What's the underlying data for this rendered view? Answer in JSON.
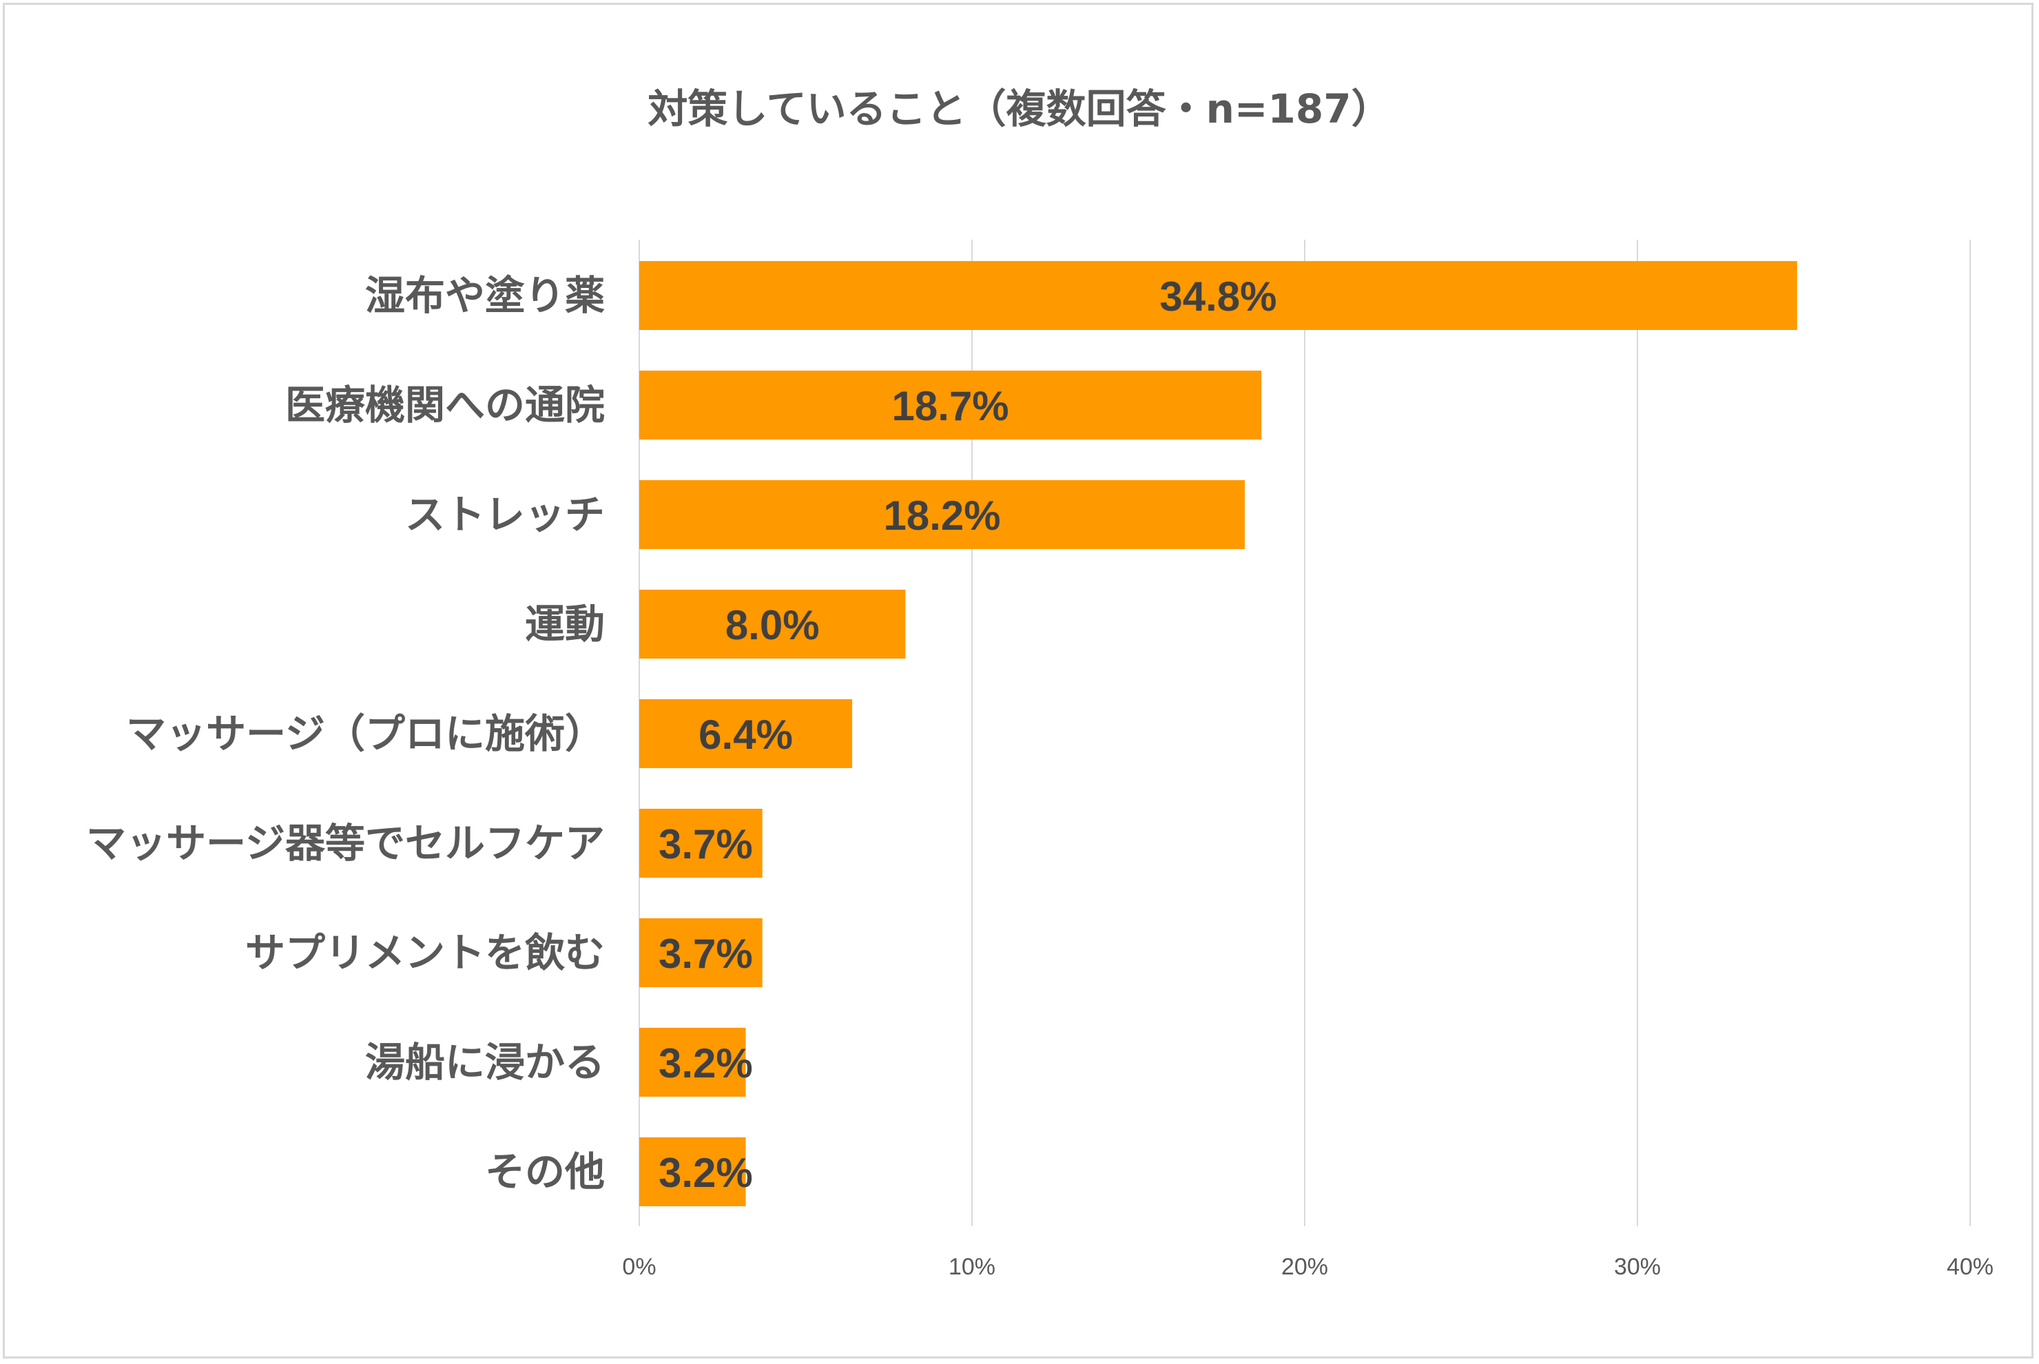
{
  "chart_data": {
    "type": "bar",
    "orientation": "horizontal",
    "title": "対策していること（複数回答・n=187）",
    "categories": [
      "湿布や塗り薬",
      "医療機関への通院",
      "ストレッチ",
      "運動",
      "マッサージ（プロに施術）",
      "マッサージ器等でセルフケア",
      "サプリメントを飲む",
      "湯船に浸かる",
      "その他"
    ],
    "values": [
      34.8,
      18.7,
      18.2,
      8.0,
      6.4,
      3.7,
      3.7,
      3.2,
      3.2
    ],
    "value_labels": [
      "34.8%",
      "18.7%",
      "18.2%",
      "8.0%",
      "6.4%",
      "3.7%",
      "3.7%",
      "3.2%",
      "3.2%"
    ],
    "xlim": [
      0,
      40
    ],
    "x_ticks": [
      0,
      10,
      20,
      30,
      40
    ],
    "x_tick_labels": [
      "0%",
      "10%",
      "20%",
      "30%",
      "40%"
    ],
    "grid": "vertical",
    "legend": "none",
    "bar_color": "#FF9900"
  }
}
